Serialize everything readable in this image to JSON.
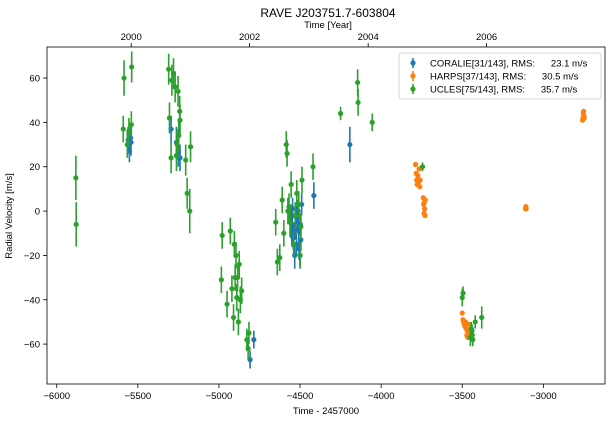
{
  "chart_data": {
    "type": "scatter",
    "title": "RAVE J203751.7-603804",
    "xlabel": "Time - 2457000",
    "ylabel": "Radial Velocity [m/s]",
    "top_xlabel": "Time [Year]",
    "xlim": [
      -6060,
      -2620
    ],
    "ylim": [
      -78,
      74
    ],
    "xticks": [
      -6000,
      -5500,
      -5000,
      -4500,
      -4000,
      -3500,
      -3000
    ],
    "yticks": [
      -60,
      -40,
      -20,
      0,
      20,
      40,
      60
    ],
    "top_ticks": [
      {
        "label": "2000",
        "x": -5541
      },
      {
        "label": "2002",
        "x": -4811
      },
      {
        "label": "2004",
        "x": -4080
      },
      {
        "label": "2006",
        "x": -3350
      }
    ],
    "grid": false,
    "legend_position": "top-right",
    "series": [
      {
        "name": "CORALIE[31/143], RMS:      23.1 m/s",
        "color": "#1f77b4",
        "points": [
          [
            -5560,
            32,
            6
          ],
          [
            -5552,
            27,
            5
          ],
          [
            -5545,
            33,
            5
          ],
          [
            -5542,
            31,
            6
          ],
          [
            -5295,
            37,
            6
          ],
          [
            -5262,
            31,
            7
          ],
          [
            -5250,
            27,
            7
          ],
          [
            -5240,
            24,
            6
          ],
          [
            -4808,
            -67,
            4
          ],
          [
            -4785,
            -58,
            4
          ],
          [
            -4560,
            -5,
            5
          ],
          [
            -4555,
            -2,
            5
          ],
          [
            -4548,
            -7,
            5
          ],
          [
            -4543,
            -12,
            5
          ],
          [
            -4538,
            -10,
            5
          ],
          [
            -4533,
            -20,
            6
          ],
          [
            -4528,
            -8,
            5
          ],
          [
            -4522,
            -15,
            5
          ],
          [
            -4517,
            -3,
            5
          ],
          [
            -4512,
            0,
            5
          ],
          [
            -4506,
            -17,
            5
          ],
          [
            -4500,
            -20,
            5
          ],
          [
            -4495,
            -13,
            5
          ],
          [
            -4490,
            3,
            5
          ],
          [
            -4415,
            7,
            6
          ],
          [
            -4193,
            30,
            8
          ],
          [
            -4551,
            -11,
            5
          ],
          [
            -4546,
            1,
            5
          ],
          [
            -4520,
            -1,
            5
          ],
          [
            -4508,
            -9,
            5
          ],
          [
            -4498,
            -6,
            5
          ]
        ]
      },
      {
        "name": "HARPS[37/143], RMS:      30.5 m/s",
        "color": "#ff7f0e",
        "points": [
          [
            -3788,
            21,
            1
          ],
          [
            -3784,
            17,
            1
          ],
          [
            -3781,
            14,
            1
          ],
          [
            -3778,
            12,
            1
          ],
          [
            -3774,
            16,
            1
          ],
          [
            -3770,
            13,
            1
          ],
          [
            -3766,
            19,
            1
          ],
          [
            -3762,
            11,
            1
          ],
          [
            -3760,
            14,
            1
          ],
          [
            -3740,
            6,
            1
          ],
          [
            -3738,
            3,
            1
          ],
          [
            -3736,
            -1,
            1
          ],
          [
            -3734,
            4,
            1
          ],
          [
            -3732,
            1,
            1
          ],
          [
            -3730,
            -2,
            1
          ],
          [
            -3728,
            5,
            1
          ],
          [
            -3500,
            -46,
            1
          ],
          [
            -3496,
            -49,
            1
          ],
          [
            -3492,
            -50,
            1
          ],
          [
            -3488,
            -51,
            1
          ],
          [
            -3484,
            -52,
            1
          ],
          [
            -3480,
            -50,
            1
          ],
          [
            -3476,
            -53,
            1
          ],
          [
            -3472,
            -56,
            1
          ],
          [
            -3470,
            -54,
            1
          ],
          [
            -3466,
            -57,
            1
          ],
          [
            -3462,
            -51,
            1
          ],
          [
            -3458,
            -55,
            1
          ],
          [
            -3110,
            1,
            1
          ],
          [
            -3108,
            2,
            1
          ],
          [
            -3106,
            1,
            1
          ],
          [
            -2758,
            41,
            1
          ],
          [
            -2756,
            42,
            1
          ],
          [
            -2754,
            44,
            1
          ],
          [
            -2752,
            45,
            1
          ],
          [
            -2750,
            43,
            1
          ],
          [
            -2748,
            42,
            1
          ]
        ]
      },
      {
        "name": "UCLES[75/143], RMS:      35.7 m/s",
        "color": "#2ca02c",
        "points": [
          [
            -5882,
            15,
            10
          ],
          [
            -5880,
            -6,
            10
          ],
          [
            -5590,
            37,
            6
          ],
          [
            -5585,
            60,
            8
          ],
          [
            -5565,
            30,
            6
          ],
          [
            -5555,
            36,
            6
          ],
          [
            -5540,
            39,
            6
          ],
          [
            -5538,
            65,
            7
          ],
          [
            -5310,
            64,
            7
          ],
          [
            -5305,
            42,
            7
          ],
          [
            -5295,
            24,
            7
          ],
          [
            -5290,
            59,
            7
          ],
          [
            -5280,
            62,
            7
          ],
          [
            -5270,
            56,
            7
          ],
          [
            -5262,
            25,
            7
          ],
          [
            -5258,
            30,
            7
          ],
          [
            -5252,
            54,
            7
          ],
          [
            -5248,
            34,
            7
          ],
          [
            -5242,
            45,
            7
          ],
          [
            -5240,
            41,
            7
          ],
          [
            -5205,
            23,
            7
          ],
          [
            -5196,
            8,
            7
          ],
          [
            -5180,
            0,
            10
          ],
          [
            -5175,
            29,
            7
          ],
          [
            -4985,
            -31,
            6
          ],
          [
            -4980,
            -11,
            6
          ],
          [
            -4950,
            -42,
            6
          ],
          [
            -4930,
            -9,
            6
          ],
          [
            -4920,
            -35,
            6
          ],
          [
            -4910,
            -48,
            6
          ],
          [
            -4905,
            -15,
            6
          ],
          [
            -4900,
            -30,
            6
          ],
          [
            -4895,
            -20,
            6
          ],
          [
            -4890,
            -39,
            6
          ],
          [
            -4885,
            -30,
            6
          ],
          [
            -4880,
            -50,
            6
          ],
          [
            -4875,
            -24,
            6
          ],
          [
            -4868,
            -40,
            6
          ],
          [
            -4860,
            -36,
            6
          ],
          [
            -4828,
            -58,
            5
          ],
          [
            -4820,
            -62,
            5
          ],
          [
            -4815,
            -55,
            5
          ],
          [
            -4650,
            -5,
            6
          ],
          [
            -4640,
            -23,
            6
          ],
          [
            -4625,
            -21,
            6
          ],
          [
            -4610,
            5,
            6
          ],
          [
            -4600,
            -10,
            6
          ],
          [
            -4585,
            30,
            6
          ],
          [
            -4580,
            26,
            6
          ],
          [
            -4575,
            0,
            6
          ],
          [
            -4568,
            2,
            6
          ],
          [
            -4562,
            -5,
            6
          ],
          [
            -4555,
            12,
            6
          ],
          [
            -4540,
            -15,
            6
          ],
          [
            -4530,
            -2,
            6
          ],
          [
            -4520,
            8,
            6
          ],
          [
            -4508,
            3,
            6
          ],
          [
            -4500,
            -20,
            6
          ],
          [
            -4495,
            -7,
            6
          ],
          [
            -4488,
            14,
            6
          ],
          [
            -4420,
            20,
            6
          ],
          [
            -4250,
            44,
            3
          ],
          [
            -4145,
            58,
            6
          ],
          [
            -4142,
            49,
            6
          ],
          [
            -4055,
            40,
            4
          ],
          [
            -3745,
            20,
            2
          ],
          [
            -3500,
            -39,
            4
          ],
          [
            -3495,
            -37,
            3
          ],
          [
            -3450,
            -57,
            4
          ],
          [
            -3445,
            -53,
            3
          ],
          [
            -3440,
            -54,
            3
          ],
          [
            -3438,
            -56,
            3
          ],
          [
            -3435,
            -58,
            3
          ],
          [
            -3420,
            -50,
            3
          ],
          [
            -3380,
            -48,
            5
          ]
        ]
      }
    ]
  }
}
